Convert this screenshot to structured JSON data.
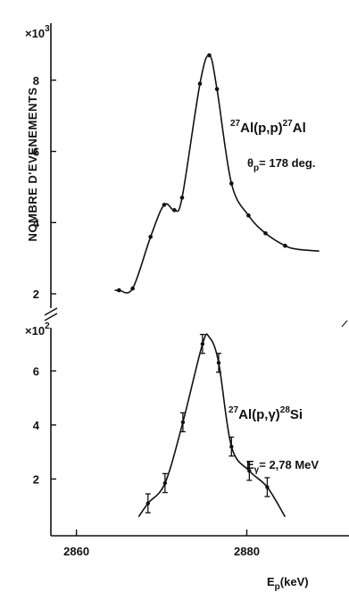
{
  "chart_data": [
    {
      "type": "line",
      "ylabel": "NOMBRE D'EVENEMENTS",
      "y_multiplier": {
        "base": "×10",
        "exponent": "3"
      },
      "yticks": [
        2,
        4,
        6,
        8
      ],
      "yticklabels": [
        "2",
        "4",
        "6",
        "8"
      ],
      "ylim": [
        1.6,
        9.6
      ],
      "xlim": [
        2857,
        2892
      ],
      "annotation": {
        "reaction_pre": "27",
        "reaction_a": "Al(p,p)",
        "reaction_sup2": "27",
        "reaction_b": "Al",
        "angle_symbol": "θ",
        "angle_sub": "p",
        "angle_value": "= 178 deg."
      },
      "series": [
        {
          "x": [
            2865.0,
            2866.6,
            2868.7,
            2870.3,
            2871.5,
            2872.4,
            2874.5,
            2875.6,
            2876.5,
            2878.2,
            2880.2,
            2882.2,
            2884.5
          ],
          "y": [
            2.1,
            2.15,
            3.6,
            4.5,
            4.35,
            4.7,
            7.9,
            8.7,
            7.75,
            5.1,
            4.2,
            3.7,
            3.35
          ]
        }
      ]
    },
    {
      "type": "line",
      "y_multiplier": {
        "base": "×10",
        "exponent": "2"
      },
      "yticks": [
        2,
        4,
        6
      ],
      "yticklabels": [
        "2",
        "4",
        "6"
      ],
      "ylim": [
        -0.1,
        7.6
      ],
      "xlim": [
        2857,
        2892
      ],
      "xticks": [
        2860,
        2880
      ],
      "xticklabels": [
        "2860",
        "2880"
      ],
      "xlabel": {
        "base": "E",
        "sub": "p",
        "unit": "(keV)"
      },
      "annotation": {
        "reaction_pre": "27",
        "reaction_a": "Al(p,",
        "gamma": "γ",
        "reaction_b": ")",
        "reaction_sup2": "28",
        "reaction_c": "Si",
        "energy_base": "E",
        "energy_sub": "γ",
        "energy_value": "= 2,78 MeV"
      },
      "series": [
        {
          "x": [
            2868.4,
            2870.4,
            2872.5,
            2874.8,
            2876.7,
            2878.2,
            2880.3,
            2882.4
          ],
          "y": [
            1.1,
            1.85,
            4.1,
            7.0,
            6.3,
            3.2,
            2.3,
            1.7
          ],
          "yerr": [
            0.35,
            0.35,
            0.35,
            0.35,
            0.35,
            0.35,
            0.35,
            0.35
          ]
        }
      ]
    }
  ]
}
